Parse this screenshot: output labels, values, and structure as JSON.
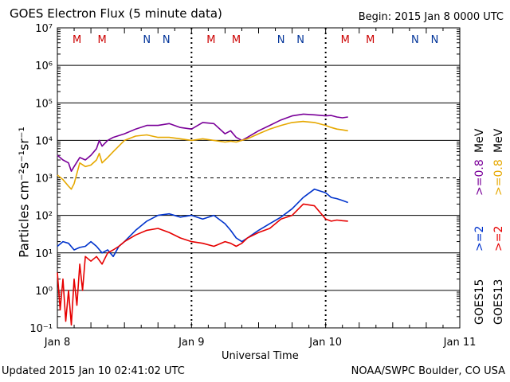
{
  "title": "GOES Electron Flux (5 minute data)",
  "begin": "Begin: 2015 Jan 8 0000 UTC",
  "updated": "Updated 2015 Jan 10 02:41:02 UTC",
  "credit": "NOAA/SWPC Boulder, CO USA",
  "colors": {
    "goes15_08": "#7a0099",
    "goes13_08": "#e6a800",
    "goes15_2": "#0033cc",
    "goes13_2": "#e60000",
    "mark_m": "#cc0000",
    "mark_n": "#003399"
  },
  "chart_data": {
    "type": "line",
    "title": "GOES Electron Flux (5 minute data)",
    "xlabel": "Universal Time",
    "ylabel": "Particles cm⁻²s⁻¹sr⁻¹",
    "yscale": "log",
    "ylim": [
      0.1,
      10000000
    ],
    "xlim": [
      0,
      72
    ],
    "x_unit": "hours since 2015 Jan 8 0000 UTC",
    "x_ticks": [
      {
        "x": 0,
        "label": "Jan 8"
      },
      {
        "x": 24,
        "label": "Jan 9"
      },
      {
        "x": 48,
        "label": "Jan 10"
      },
      {
        "x": 72,
        "label": "Jan 11"
      }
    ],
    "y_ticks": [
      {
        "exp": -1,
        "label": "10⁻¹"
      },
      {
        "exp": 0,
        "label": "10⁰"
      },
      {
        "exp": 1,
        "label": "10¹"
      },
      {
        "exp": 2,
        "label": "10²"
      },
      {
        "exp": 3,
        "label": "10³"
      },
      {
        "exp": 4,
        "label": "10⁴"
      },
      {
        "exp": 5,
        "label": "10⁵"
      },
      {
        "exp": 6,
        "label": "10⁶"
      },
      {
        "exp": 7,
        "label": "10⁷"
      }
    ],
    "threshold": 1000,
    "day_markers": [
      {
        "x": 3.5,
        "label": "M",
        "sat": "m"
      },
      {
        "x": 8.0,
        "label": "M",
        "sat": "m"
      },
      {
        "x": 16.0,
        "label": "N",
        "sat": "n"
      },
      {
        "x": 19.5,
        "label": "N",
        "sat": "n"
      },
      {
        "x": 27.5,
        "label": "M",
        "sat": "m"
      },
      {
        "x": 32.0,
        "label": "M",
        "sat": "m"
      },
      {
        "x": 40.0,
        "label": "N",
        "sat": "n"
      },
      {
        "x": 43.5,
        "label": "N",
        "sat": "n"
      },
      {
        "x": 51.5,
        "label": "M",
        "sat": "m"
      },
      {
        "x": 56.0,
        "label": "M",
        "sat": "m"
      },
      {
        "x": 64.0,
        "label": "N",
        "sat": "n"
      },
      {
        "x": 67.5,
        "label": "N",
        "sat": "n"
      }
    ],
    "series": [
      {
        "name": ">=0.8 MeV",
        "sat": "GOES15",
        "color": "#7a0099",
        "x": [
          0,
          1,
          2,
          2.5,
          3,
          4,
          5,
          6,
          7,
          7.5,
          8,
          9,
          10,
          12,
          14,
          16,
          18,
          20,
          22,
          24,
          26,
          28,
          30,
          31,
          32,
          33,
          34,
          36,
          38,
          40,
          42,
          44,
          46,
          48,
          49,
          50,
          51,
          52
        ],
        "y": [
          4000,
          3000,
          2500,
          1500,
          2000,
          3500,
          3000,
          4000,
          6000,
          10000,
          7000,
          10000,
          12000,
          15000,
          20000,
          25000,
          25000,
          28000,
          22000,
          20000,
          30000,
          28000,
          15000,
          18000,
          12000,
          10000,
          12000,
          18000,
          25000,
          35000,
          45000,
          50000,
          48000,
          45000,
          46000,
          42000,
          40000,
          42000
        ]
      },
      {
        "name": ">=0.8 MeV",
        "sat": "GOES13",
        "color": "#e6a800",
        "x": [
          0,
          1,
          2,
          2.5,
          3,
          4,
          5,
          6,
          7,
          7.5,
          8,
          9,
          10,
          12,
          14,
          16,
          18,
          20,
          22,
          24,
          26,
          28,
          30,
          31,
          32,
          33,
          34,
          36,
          38,
          40,
          42,
          44,
          46,
          48,
          49,
          50,
          51,
          52
        ],
        "y": [
          1200,
          900,
          600,
          500,
          700,
          2500,
          2000,
          2200,
          3000,
          4500,
          2500,
          3500,
          5000,
          10000,
          13000,
          14000,
          12000,
          12000,
          11000,
          10000,
          11000,
          10000,
          9000,
          9500,
          9000,
          10000,
          11000,
          15000,
          20000,
          25000,
          30000,
          32000,
          30000,
          25000,
          22000,
          20000,
          19000,
          18000
        ]
      },
      {
        "name": ">=2 MeV",
        "sat": "GOES15",
        "color": "#0033cc",
        "x": [
          0,
          1,
          2,
          3,
          4,
          5,
          6,
          7,
          8,
          9,
          10,
          11,
          12,
          14,
          16,
          18,
          20,
          22,
          24,
          26,
          28,
          30,
          31,
          32,
          33,
          34,
          36,
          38,
          40,
          42,
          44,
          46,
          48,
          49,
          50,
          51,
          52
        ],
        "y": [
          15,
          20,
          18,
          12,
          14,
          15,
          20,
          15,
          10,
          12,
          8,
          15,
          20,
          40,
          70,
          100,
          110,
          90,
          100,
          80,
          100,
          60,
          40,
          25,
          20,
          25,
          40,
          60,
          90,
          150,
          300,
          500,
          400,
          300,
          280,
          250,
          220
        ]
      },
      {
        "name": ">=2 MeV",
        "sat": "GOES13",
        "color": "#e60000",
        "x": [
          0,
          0.5,
          1,
          1.5,
          2,
          2.5,
          3,
          3.5,
          4,
          4.5,
          5,
          6,
          7,
          8,
          9,
          10,
          11,
          12,
          14,
          16,
          18,
          20,
          22,
          24,
          26,
          28,
          30,
          31,
          32,
          33,
          34,
          36,
          38,
          40,
          42,
          44,
          46,
          48,
          49,
          50,
          51,
          52
        ],
        "y": [
          3,
          0.3,
          2,
          0.15,
          1,
          0.12,
          2,
          0.4,
          5,
          1,
          8,
          6,
          8,
          5,
          10,
          12,
          15,
          20,
          30,
          40,
          45,
          35,
          25,
          20,
          18,
          15,
          20,
          18,
          15,
          18,
          25,
          35,
          45,
          80,
          100,
          200,
          180,
          80,
          70,
          75,
          72,
          70
        ]
      }
    ]
  },
  "right_labels": {
    "goes15": "GOES15",
    "goes13": "GOES13",
    "g15_2": ">=2",
    "g13_2": ">=2",
    "g15_08": ">=0.8",
    "g13_08": ">=0.8",
    "mev": "MeV"
  }
}
